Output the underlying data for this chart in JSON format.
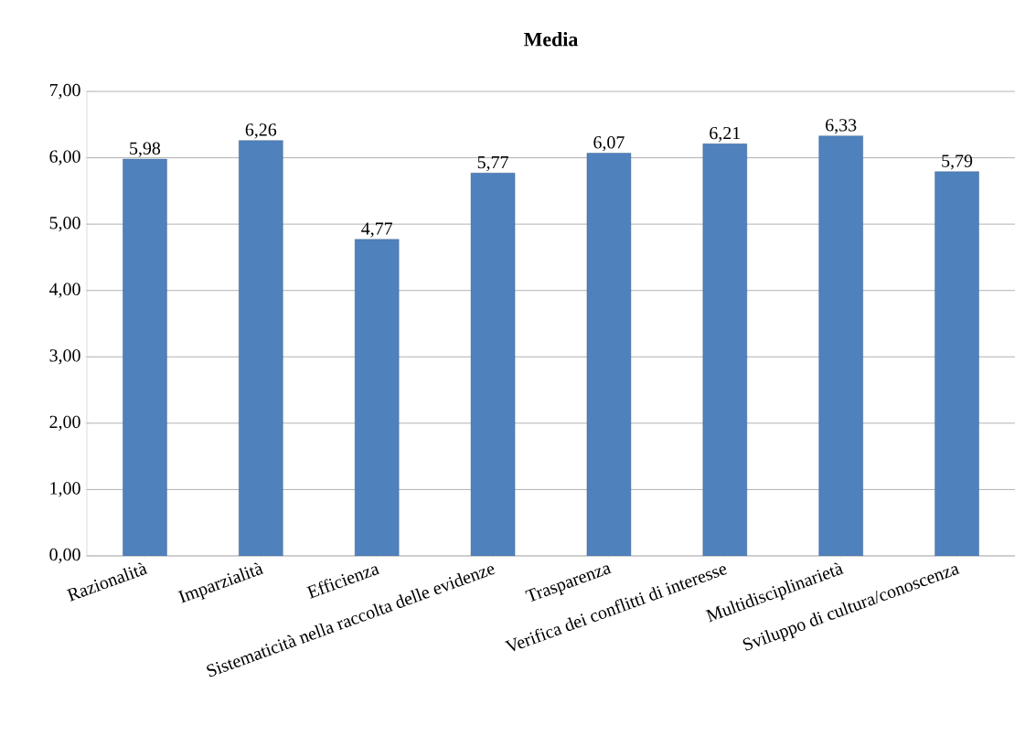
{
  "chart_data": {
    "type": "bar",
    "title": "Media",
    "categories": [
      "Razionalità",
      "Imparzialità",
      "Efficienza",
      "Sistematicità nella raccolta delle evidenze",
      "Trasparenza",
      "Verifica dei conflitti di interesse",
      "Multidisciplinarietà",
      "Sviluppo di cultura/conoscenza"
    ],
    "values": [
      5.98,
      6.26,
      4.77,
      5.77,
      6.07,
      6.21,
      6.33,
      5.79
    ],
    "value_labels": [
      "5,98",
      "6,26",
      "4,77",
      "5,77",
      "6,07",
      "6,21",
      "6,33",
      "5,79"
    ],
    "color": "#4f81bd",
    "ylim": [
      0,
      7
    ],
    "yticks": [
      {
        "value": 0,
        "label": "0,00"
      },
      {
        "value": 1,
        "label": "1,00"
      },
      {
        "value": 2,
        "label": "2,00"
      },
      {
        "value": 3,
        "label": "3,00"
      },
      {
        "value": 4,
        "label": "4,00"
      },
      {
        "value": 5,
        "label": "5,00"
      },
      {
        "value": 6,
        "label": "6,00"
      },
      {
        "value": 7,
        "label": "7,00"
      }
    ],
    "grid": "y"
  }
}
